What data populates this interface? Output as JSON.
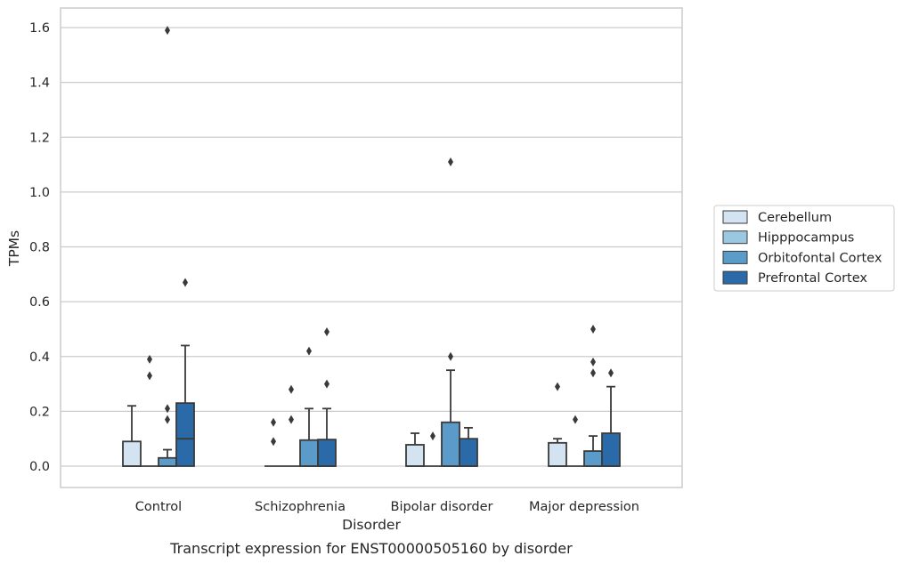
{
  "chart_data": {
    "type": "box",
    "title": "",
    "caption": "Transcript expression for ENST00000505160 by disorder",
    "xlabel": "Disorder",
    "ylabel": "TPMs",
    "ylim": [
      -0.08,
      1.67
    ],
    "yticks": [
      "0.0",
      "0.2",
      "0.4",
      "0.6",
      "0.8",
      "1.0",
      "1.2",
      "1.4",
      "1.6"
    ],
    "categories": [
      "Control",
      "Schizophrenia",
      "Bipolar disorder",
      "Major depression"
    ],
    "grid": "horizontal",
    "legend_position": "right",
    "series": [
      {
        "name": "Cerebellum",
        "color": "#d3e3f2",
        "boxes": [
          {
            "q1": 0.0,
            "median": 0.0,
            "q3": 0.09,
            "whisker_low": 0.0,
            "whisker_high": 0.22,
            "outliers": []
          },
          {
            "q1": 0.0,
            "median": 0.0,
            "q3": 0.0,
            "whisker_low": 0.0,
            "whisker_high": 0.0,
            "outliers": [
              0.09,
              0.16
            ]
          },
          {
            "q1": 0.0,
            "median": 0.0,
            "q3": 0.078,
            "whisker_low": 0.0,
            "whisker_high": 0.12,
            "outliers": []
          },
          {
            "q1": 0.0,
            "median": 0.0,
            "q3": 0.085,
            "whisker_low": 0.0,
            "whisker_high": 0.1,
            "outliers": [
              0.29
            ]
          }
        ]
      },
      {
        "name": "Hipppocampus",
        "color": "#9ac8e0",
        "boxes": [
          {
            "q1": 0.0,
            "median": 0.0,
            "q3": 0.0,
            "whisker_low": 0.0,
            "whisker_high": 0.0,
            "outliers": [
              0.33,
              0.39
            ]
          },
          {
            "q1": 0.0,
            "median": 0.0,
            "q3": 0.0,
            "whisker_low": 0.0,
            "whisker_high": 0.0,
            "outliers": [
              0.17,
              0.28
            ]
          },
          {
            "q1": 0.0,
            "median": 0.0,
            "q3": 0.0,
            "whisker_low": 0.0,
            "whisker_high": 0.0,
            "outliers": [
              0.11
            ]
          },
          {
            "q1": 0.0,
            "median": 0.0,
            "q3": 0.0,
            "whisker_low": 0.0,
            "whisker_high": 0.0,
            "outliers": [
              0.17
            ]
          }
        ]
      },
      {
        "name": "Orbitofontal Cortex",
        "color": "#5a9bc9",
        "boxes": [
          {
            "q1": 0.0,
            "median": 0.0,
            "q3": 0.03,
            "whisker_low": 0.0,
            "whisker_high": 0.06,
            "outliers": [
              0.17,
              0.21,
              1.59
            ]
          },
          {
            "q1": 0.0,
            "median": 0.0,
            "q3": 0.095,
            "whisker_low": 0.0,
            "whisker_high": 0.21,
            "outliers": [
              0.42
            ]
          },
          {
            "q1": 0.0,
            "median": 0.0,
            "q3": 0.16,
            "whisker_low": 0.0,
            "whisker_high": 0.35,
            "outliers": [
              0.4,
              1.11
            ]
          },
          {
            "q1": 0.0,
            "median": 0.0,
            "q3": 0.055,
            "whisker_low": 0.0,
            "whisker_high": 0.11,
            "outliers": [
              0.34,
              0.38,
              0.5
            ]
          }
        ]
      },
      {
        "name": "Prefrontal Cortex",
        "color": "#2a6aa8",
        "boxes": [
          {
            "q1": 0.0,
            "median": 0.1,
            "q3": 0.23,
            "whisker_low": 0.0,
            "whisker_high": 0.44,
            "outliers": [
              0.67
            ]
          },
          {
            "q1": 0.0,
            "median": 0.0,
            "q3": 0.097,
            "whisker_low": 0.0,
            "whisker_high": 0.21,
            "outliers": [
              0.3,
              0.49
            ]
          },
          {
            "q1": 0.0,
            "median": 0.0,
            "q3": 0.1,
            "whisker_low": 0.0,
            "whisker_high": 0.14,
            "outliers": []
          },
          {
            "q1": 0.0,
            "median": 0.0,
            "q3": 0.12,
            "whisker_low": 0.0,
            "whisker_high": 0.29,
            "outliers": [
              0.34
            ]
          }
        ]
      }
    ]
  }
}
